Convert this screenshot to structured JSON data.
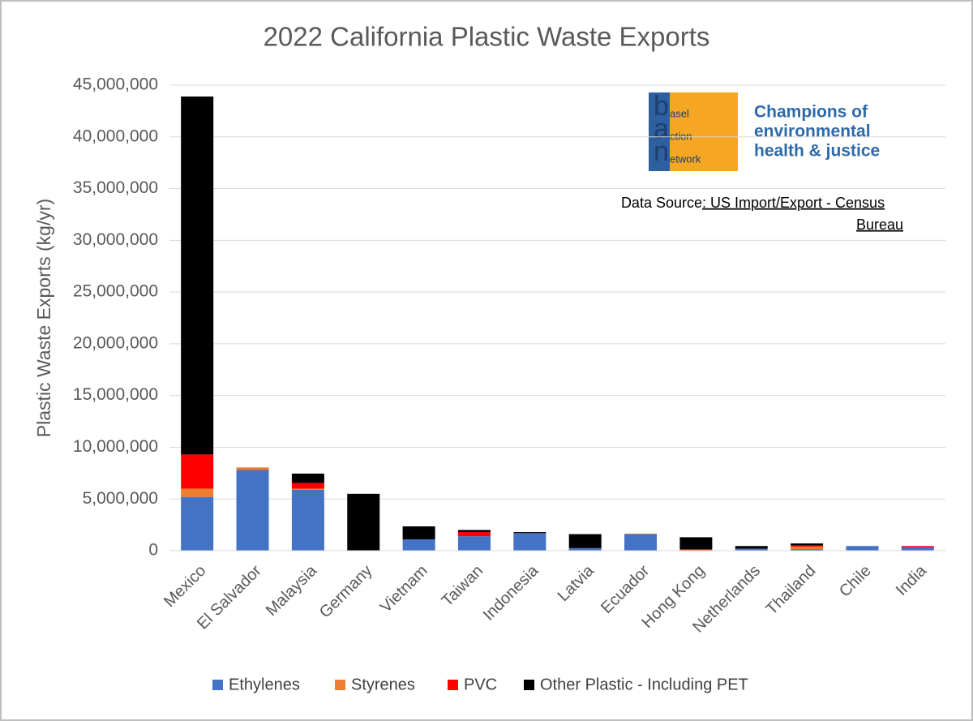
{
  "chart_data": {
    "type": "stacked_bar",
    "title": "2022 California Plastic Waste Exports",
    "y_label": "Plastic Waste Exports (kg/yr)",
    "categories": [
      "Mexico",
      "El Salvador",
      "Malaysia",
      "Germany",
      "Vietnam",
      "Taiwan",
      "Indonesia",
      "Latvia",
      "Ecuador",
      "Hong Kong",
      "Netherlands",
      "Thailand",
      "Chile",
      "India"
    ],
    "series": [
      {
        "name": "Ethylenes",
        "color": "#4472c4",
        "values": [
          5200000,
          7800000,
          5900000,
          0,
          1100000,
          1400000,
          1700000,
          250000,
          1600000,
          50000,
          200000,
          150000,
          450000,
          350000
        ]
      },
      {
        "name": "Styrenes",
        "color": "#ed7d31",
        "values": [
          800000,
          250000,
          100000,
          0,
          0,
          0,
          0,
          0,
          50000,
          0,
          0,
          250000,
          0,
          0
        ]
      },
      {
        "name": "PVC",
        "color": "#ff0000",
        "values": [
          3300000,
          0,
          550000,
          0,
          0,
          400000,
          0,
          0,
          0,
          100000,
          0,
          100000,
          0,
          100000
        ]
      },
      {
        "name": "Other Plastic - Including PET",
        "color": "#000000",
        "values": [
          34600000,
          0,
          900000,
          5500000,
          1250000,
          200000,
          100000,
          1350000,
          0,
          1150000,
          250000,
          200000,
          0,
          0
        ]
      }
    ],
    "ylim": [
      0,
      45000000
    ],
    "yticks": [
      {
        "value": 0,
        "label": "0"
      },
      {
        "value": 5000000,
        "label": "5,000,000"
      },
      {
        "value": 10000000,
        "label": "10,000,000"
      },
      {
        "value": 15000000,
        "label": "15,000,000"
      },
      {
        "value": 20000000,
        "label": "20,000,000"
      },
      {
        "value": 25000000,
        "label": "25,000,000"
      },
      {
        "value": 30000000,
        "label": "30,000,000"
      },
      {
        "value": 35000000,
        "label": "35,000,000"
      },
      {
        "value": 40000000,
        "label": "40,000,000"
      },
      {
        "value": 45000000,
        "label": "45,000,000"
      }
    ],
    "grid": true,
    "legend": "bottom",
    "logo_letters": [
      "b",
      "a",
      "n"
    ],
    "logo_words": [
      "asel",
      "ction",
      "etwork"
    ],
    "tagline": [
      "Champions of",
      "environmental",
      "health & justice"
    ],
    "source": [
      "Data Source",
      ": US Import/Export - Census",
      "Bureau"
    ]
  }
}
